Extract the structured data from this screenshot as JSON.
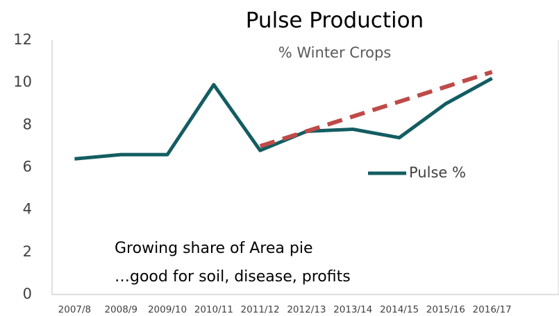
{
  "chart_data": {
    "type": "line",
    "title": "Pulse Production",
    "subtitle": "% Winter Crops",
    "categories": [
      "2007/8",
      "2008/9",
      "2009/10",
      "2010/11",
      "2011/12",
      "2012/13",
      "2013/14",
      "2014/15",
      "2015/16",
      "2016/17"
    ],
    "series": [
      {
        "name": "Pulse %",
        "color": "#135d62",
        "values": [
          6.4,
          6.6,
          6.6,
          9.9,
          6.8,
          7.7,
          7.8,
          7.4,
          9.0,
          10.2
        ]
      }
    ],
    "trend_line": {
      "color": "#be4b48",
      "values": [
        null,
        null,
        null,
        null,
        7.0,
        7.7,
        8.4,
        9.1,
        9.8,
        10.5
      ]
    },
    "annotation": [
      "Growing share of Area pie",
      "…good for soil, disease, profits"
    ],
    "ylim": [
      0,
      12
    ],
    "yticks": [
      0,
      2,
      4,
      6,
      8,
      10,
      12
    ],
    "grid": false,
    "legend": "right"
  }
}
